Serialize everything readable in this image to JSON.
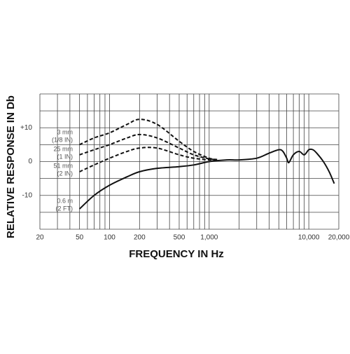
{
  "chart_data": {
    "type": "line",
    "xlabel": "FREQUENCY IN Hz",
    "ylabel": "RELATIVE RESPONSE IN Db",
    "xscale": "log",
    "xlim": [
      20,
      20000
    ],
    "ylim": [
      -20,
      20
    ],
    "xticks": [
      20,
      50,
      100,
      200,
      500,
      {
        "value": 1000,
        "label": "1,000"
      },
      {
        "value": 10000,
        "label": "10,000"
      },
      {
        "value": 20000,
        "label": "20,000"
      }
    ],
    "yticks": [
      {
        "value": 10,
        "label": "+10"
      },
      0,
      -10
    ],
    "xgrid": [
      20,
      30,
      40,
      50,
      60,
      70,
      80,
      90,
      100,
      200,
      300,
      400,
      500,
      600,
      700,
      800,
      900,
      1000,
      2000,
      3000,
      4000,
      5000,
      6000,
      7000,
      8000,
      9000,
      10000,
      20000
    ],
    "ygrid": [
      -20,
      -15,
      -10,
      -5,
      0,
      5,
      10,
      15,
      20
    ],
    "series": [
      {
        "label": [
          "3 mm",
          "(1/8 IN)"
        ],
        "color": "#111111",
        "dashed": true,
        "x": [
          50,
          70,
          100,
          150,
          200,
          300,
          500,
          700,
          1000,
          1200
        ],
        "values": [
          5,
          7,
          8.5,
          11,
          12.5,
          11,
          6,
          3,
          1,
          0.6
        ]
      },
      {
        "label": [
          "25 mm",
          "(1 IN)"
        ],
        "color": "#111111",
        "dashed": true,
        "x": [
          50,
          70,
          100,
          150,
          200,
          300,
          500,
          700,
          1000,
          1200
        ],
        "values": [
          2,
          3.5,
          5,
          7,
          8,
          7,
          4,
          2,
          0.8,
          0.6
        ]
      },
      {
        "label": [
          "51 mm",
          "(2 IN)"
        ],
        "color": "#111111",
        "dashed": true,
        "x": [
          50,
          70,
          100,
          150,
          200,
          300,
          500,
          700,
          1000,
          1200
        ],
        "values": [
          -3,
          -1,
          1,
          3,
          4,
          4,
          2,
          1,
          0.5,
          0.6
        ]
      },
      {
        "label": [
          "0.6 m",
          "(2 FT)"
        ],
        "color": "#111111",
        "dashed": false,
        "x": [
          50,
          70,
          100,
          150,
          200,
          300,
          500,
          700,
          1000,
          1500,
          2000,
          3000,
          4000,
          5000,
          5500,
          6000,
          6300,
          7000,
          8000,
          9000,
          10000,
          11000,
          12000,
          14000,
          16000,
          18000
        ],
        "values": [
          -14,
          -10,
          -7,
          -4.5,
          -3,
          -2,
          -1.5,
          -1,
          0,
          0.5,
          0.5,
          1,
          2.5,
          3.5,
          3,
          1,
          -0.3,
          2,
          3,
          2,
          3.5,
          3.5,
          2.5,
          0,
          -3,
          -6.5
        ]
      }
    ]
  }
}
